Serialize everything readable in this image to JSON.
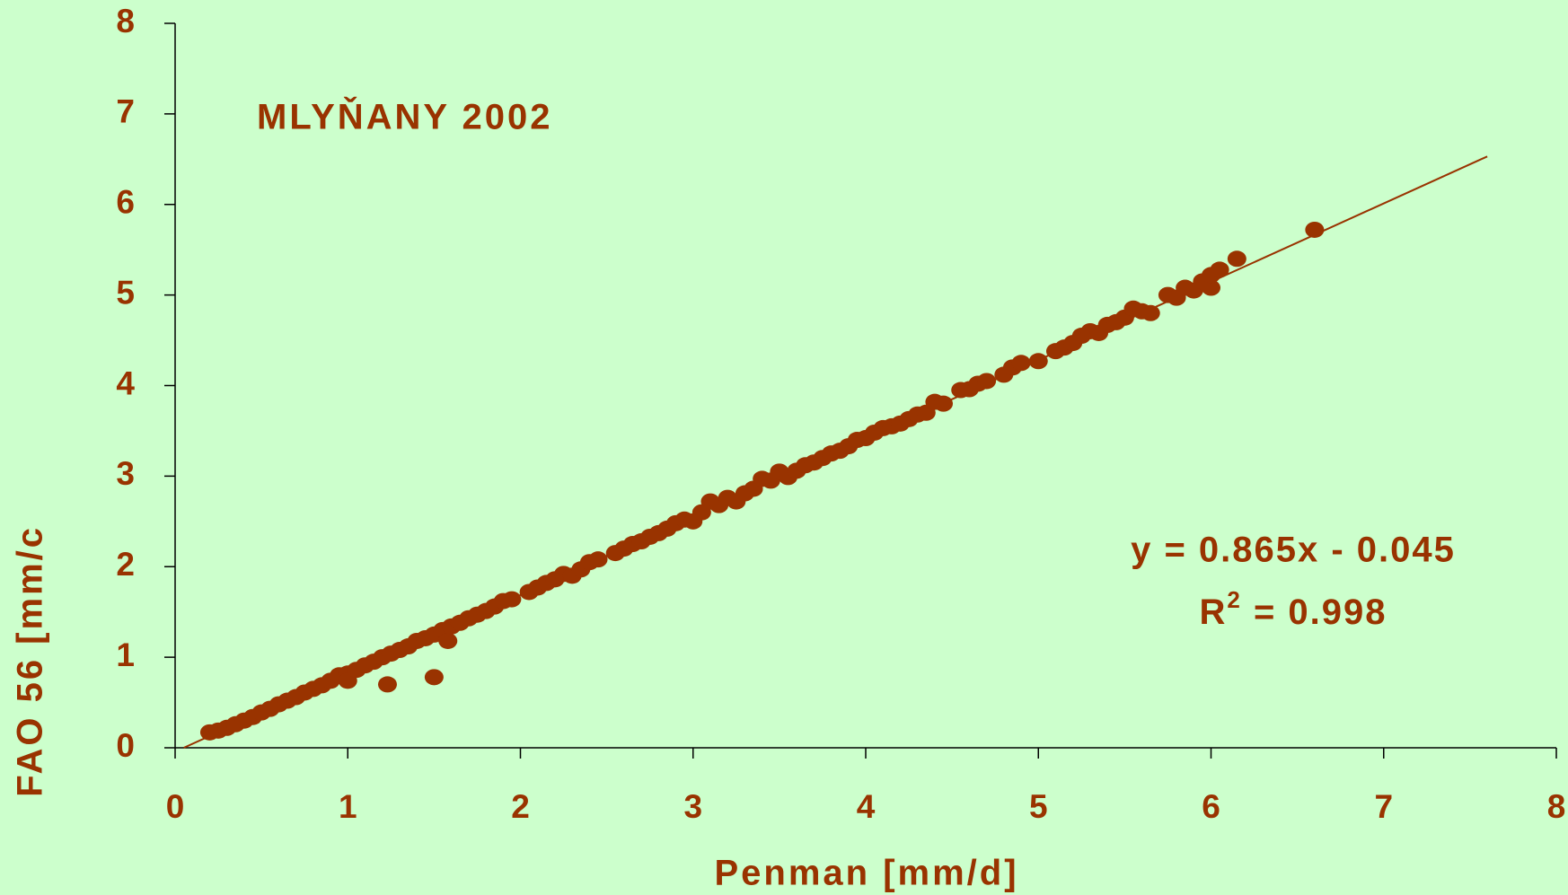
{
  "chart_data": {
    "type": "scatter",
    "title": "MLYŇANY 2002",
    "equation": "y = 0.865x - 0.045",
    "r2": {
      "base": "R",
      "sup": "2",
      "rest": " = 0.998"
    },
    "xlabel": "Penman [mm/d]",
    "ylabel": "FAO 56 [mm/c",
    "xlim": [
      0,
      8
    ],
    "ylim": [
      0,
      8
    ],
    "xticks": [
      0,
      1,
      2,
      3,
      4,
      5,
      6,
      7,
      8
    ],
    "yticks": [
      0,
      1,
      2,
      3,
      4,
      5,
      6,
      7,
      8
    ],
    "color": "#993300",
    "trendline": {
      "x": [
        0.05,
        7.6
      ],
      "y": [
        0,
        6.53
      ]
    },
    "x": [
      0.2,
      0.25,
      0.3,
      0.35,
      0.4,
      0.45,
      0.5,
      0.55,
      0.6,
      0.65,
      0.7,
      0.75,
      0.8,
      0.85,
      0.9,
      0.95,
      1.0,
      1.0,
      1.05,
      1.1,
      1.15,
      1.2,
      1.23,
      1.25,
      1.3,
      1.35,
      1.4,
      1.45,
      1.5,
      1.5,
      1.55,
      1.58,
      1.6,
      1.65,
      1.7,
      1.75,
      1.8,
      1.85,
      1.9,
      1.95,
      2.05,
      2.1,
      2.15,
      2.2,
      2.25,
      2.3,
      2.35,
      2.4,
      2.45,
      2.55,
      2.6,
      2.65,
      2.7,
      2.75,
      2.8,
      2.85,
      2.9,
      2.95,
      3.0,
      3.05,
      3.1,
      3.15,
      3.2,
      3.25,
      3.3,
      3.35,
      3.4,
      3.45,
      3.5,
      3.55,
      3.6,
      3.65,
      3.7,
      3.75,
      3.8,
      3.85,
      3.9,
      3.95,
      4.0,
      4.05,
      4.1,
      4.15,
      4.2,
      4.25,
      4.3,
      4.35,
      4.4,
      4.45,
      4.55,
      4.6,
      4.65,
      4.7,
      4.8,
      4.85,
      4.9,
      5.0,
      5.1,
      5.15,
      5.2,
      5.25,
      5.3,
      5.35,
      5.4,
      5.45,
      5.5,
      5.55,
      5.6,
      5.65,
      5.75,
      5.8,
      5.85,
      5.9,
      5.95,
      6.0,
      6.0,
      6.05,
      6.15,
      6.6
    ],
    "values": [
      0.17,
      0.19,
      0.22,
      0.26,
      0.3,
      0.34,
      0.39,
      0.43,
      0.48,
      0.52,
      0.56,
      0.61,
      0.65,
      0.69,
      0.74,
      0.8,
      0.82,
      0.74,
      0.86,
      0.91,
      0.95,
      1.0,
      0.7,
      1.04,
      1.08,
      1.12,
      1.18,
      1.21,
      0.78,
      1.25,
      1.3,
      1.18,
      1.34,
      1.38,
      1.43,
      1.47,
      1.51,
      1.56,
      1.62,
      1.64,
      1.72,
      1.77,
      1.82,
      1.86,
      1.92,
      1.9,
      1.97,
      2.05,
      2.08,
      2.15,
      2.2,
      2.25,
      2.28,
      2.33,
      2.37,
      2.42,
      2.48,
      2.52,
      2.5,
      2.6,
      2.72,
      2.68,
      2.76,
      2.72,
      2.81,
      2.86,
      2.97,
      2.95,
      3.05,
      2.99,
      3.06,
      3.12,
      3.15,
      3.2,
      3.25,
      3.28,
      3.33,
      3.4,
      3.42,
      3.48,
      3.53,
      3.55,
      3.58,
      3.63,
      3.68,
      3.7,
      3.82,
      3.8,
      3.95,
      3.96,
      4.02,
      4.05,
      4.12,
      4.2,
      4.25,
      4.27,
      4.38,
      4.42,
      4.47,
      4.55,
      4.6,
      4.58,
      4.67,
      4.7,
      4.75,
      4.85,
      4.82,
      4.8,
      5.0,
      4.97,
      5.08,
      5.05,
      5.15,
      5.08,
      5.22,
      5.28,
      5.4,
      5.72
    ]
  }
}
